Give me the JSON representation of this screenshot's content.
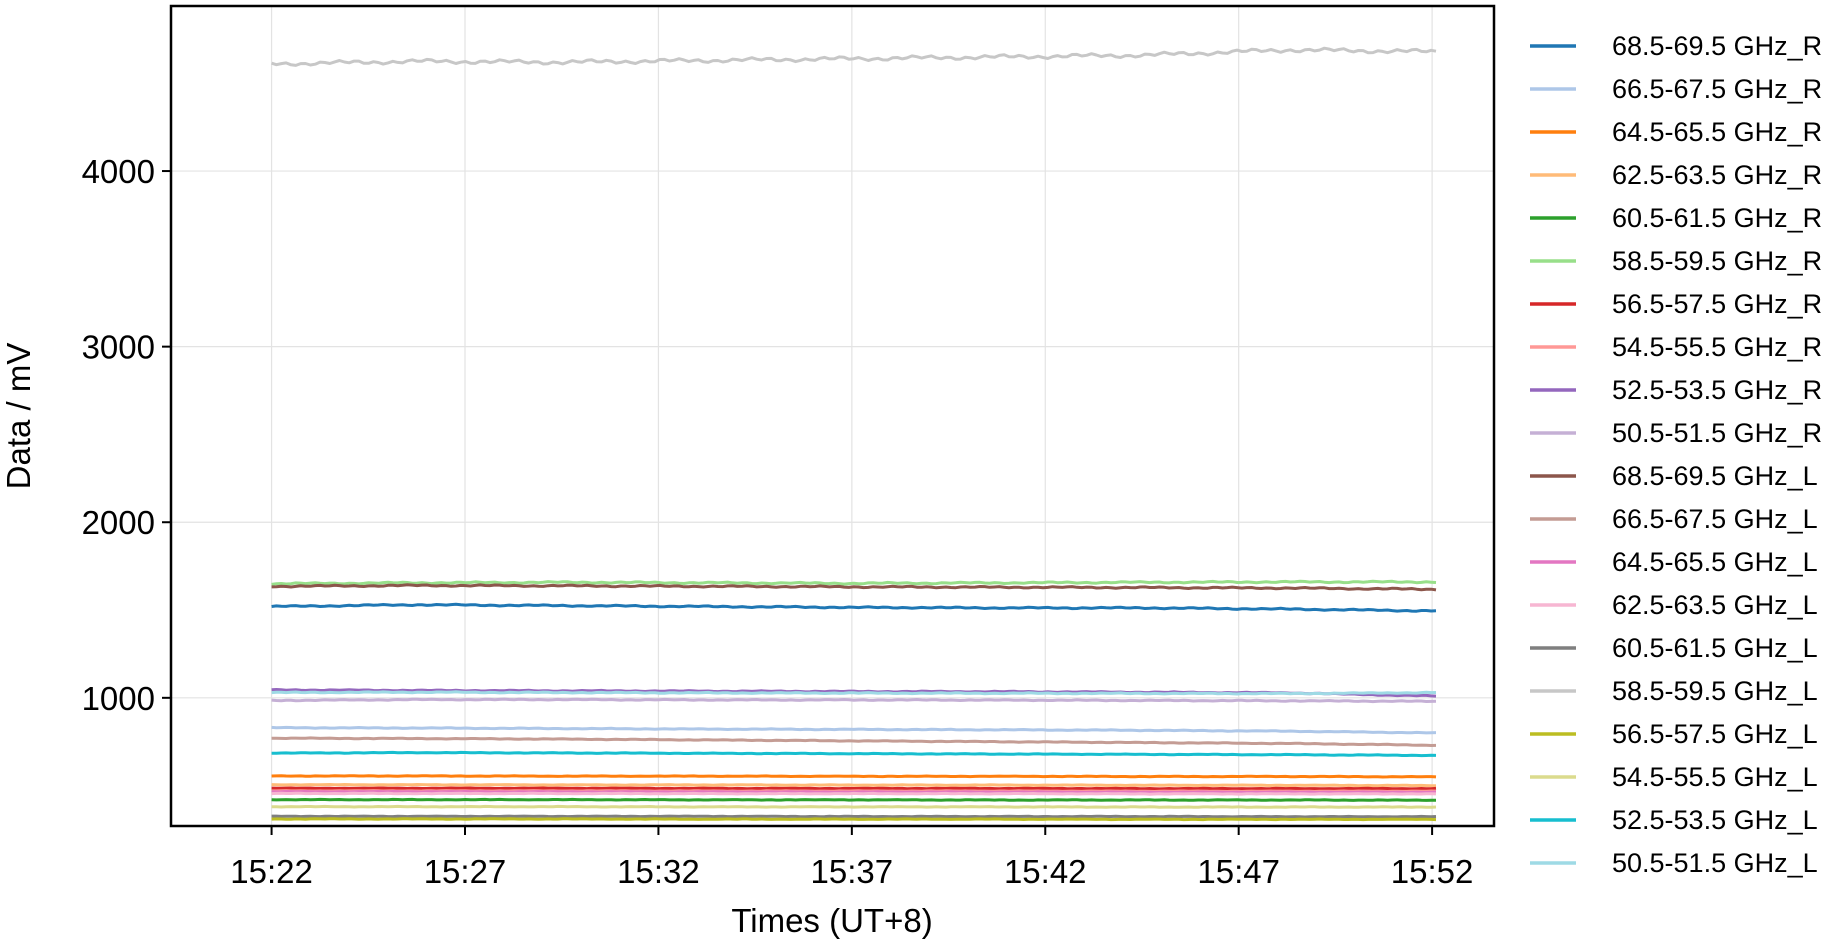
{
  "chart_data": {
    "type": "line",
    "title": "",
    "xlabel": "Times (UT+8)",
    "ylabel": "Data / mV",
    "x_range_minutes": [
      19.4,
      53.6
    ],
    "ylim": [
      270,
      4940
    ],
    "x_ticks": [
      {
        "minute": 22,
        "label": "15:22"
      },
      {
        "minute": 27,
        "label": "15:27"
      },
      {
        "minute": 32,
        "label": "15:32"
      },
      {
        "minute": 37,
        "label": "15:37"
      },
      {
        "minute": 42,
        "label": "15:42"
      },
      {
        "minute": 47,
        "label": "15:47"
      },
      {
        "minute": 52,
        "label": "15:52"
      }
    ],
    "y_ticks": [
      1000,
      2000,
      3000,
      4000
    ],
    "grid": true,
    "legend_position": "right-outside",
    "x_start_minute": 22,
    "x_end_minute": 52.1,
    "series": [
      {
        "name": "68.5-69.5 GHz_R",
        "color": "#1f77b4",
        "values": [
          1520,
          1530,
          1525,
          1520,
          1515,
          1512,
          1512,
          1505,
          1495
        ]
      },
      {
        "name": "66.5-67.5 GHz_R",
        "color": "#aec7e8",
        "values": [
          830,
          828,
          825,
          822,
          820,
          818,
          815,
          810,
          800
        ]
      },
      {
        "name": "64.5-65.5 GHz_R",
        "color": "#ff7f0e",
        "values": [
          555,
          555,
          554,
          554,
          553,
          553,
          552,
          552,
          550
        ]
      },
      {
        "name": "62.5-63.5 GHz_R",
        "color": "#ffbb78",
        "values": [
          505,
          505,
          504,
          504,
          503,
          503,
          502,
          502,
          500
        ]
      },
      {
        "name": "60.5-61.5 GHz_R",
        "color": "#2ca02c",
        "values": [
          420,
          420,
          420,
          419,
          419,
          418,
          418,
          418,
          417
        ]
      },
      {
        "name": "58.5-59.5 GHz_R",
        "color": "#98df8a",
        "values": [
          1650,
          1655,
          1658,
          1655,
          1652,
          1655,
          1658,
          1660,
          1660
        ]
      },
      {
        "name": "56.5-57.5 GHz_R",
        "color": "#d62728",
        "values": [
          485,
          485,
          485,
          484,
          484,
          484,
          483,
          483,
          483
        ]
      },
      {
        "name": "54.5-55.5 GHz_R",
        "color": "#ff9896",
        "values": [
          470,
          470,
          470,
          469,
          469,
          469,
          468,
          468,
          468
        ]
      },
      {
        "name": "52.5-53.5 GHz_R",
        "color": "#9467bd",
        "values": [
          1045,
          1042,
          1040,
          1038,
          1036,
          1035,
          1032,
          1028,
          1010
        ]
      },
      {
        "name": "50.5-51.5 GHz_R",
        "color": "#c5b0d5",
        "values": [
          985,
          990,
          990,
          988,
          988,
          987,
          985,
          983,
          980
        ]
      },
      {
        "name": "68.5-69.5 GHz_L",
        "color": "#8c564b",
        "values": [
          1635,
          1640,
          1638,
          1635,
          1632,
          1630,
          1628,
          1625,
          1618
        ]
      },
      {
        "name": "66.5-67.5 GHz_L",
        "color": "#c49c94",
        "values": [
          770,
          768,
          765,
          760,
          755,
          750,
          745,
          740,
          730
        ]
      },
      {
        "name": "64.5-65.5 GHz_L",
        "color": "#e377c2",
        "values": [
          465,
          465,
          464,
          464,
          463,
          463,
          462,
          462,
          462
        ]
      },
      {
        "name": "62.5-63.5 GHz_L",
        "color": "#f7b6d2",
        "values": [
          455,
          455,
          455,
          454,
          454,
          454,
          453,
          453,
          453
        ]
      },
      {
        "name": "60.5-61.5 GHz_L",
        "color": "#7f7f7f",
        "values": [
          325,
          325,
          325,
          325,
          324,
          324,
          324,
          323,
          323
        ]
      },
      {
        "name": "58.5-59.5 GHz_L",
        "color": "#c7c7c7",
        "values": [
          4610,
          4625,
          4620,
          4630,
          4640,
          4650,
          4660,
          4690,
          4680
        ]
      },
      {
        "name": "56.5-57.5 GHz_L",
        "color": "#bcbd22",
        "values": [
          310,
          310,
          310,
          309,
          309,
          309,
          308,
          308,
          308
        ]
      },
      {
        "name": "54.5-55.5 GHz_L",
        "color": "#dbdb8d",
        "values": [
          380,
          380,
          380,
          379,
          379,
          379,
          378,
          378,
          378
        ]
      },
      {
        "name": "52.5-53.5 GHz_L",
        "color": "#17becf",
        "values": [
          685,
          688,
          686,
          684,
          682,
          680,
          678,
          676,
          672
        ]
      },
      {
        "name": "50.5-51.5 GHz_L",
        "color": "#9edae5",
        "values": [
          1030,
          1032,
          1030,
          1028,
          1027,
          1026,
          1025,
          1024,
          1030
        ]
      }
    ]
  }
}
